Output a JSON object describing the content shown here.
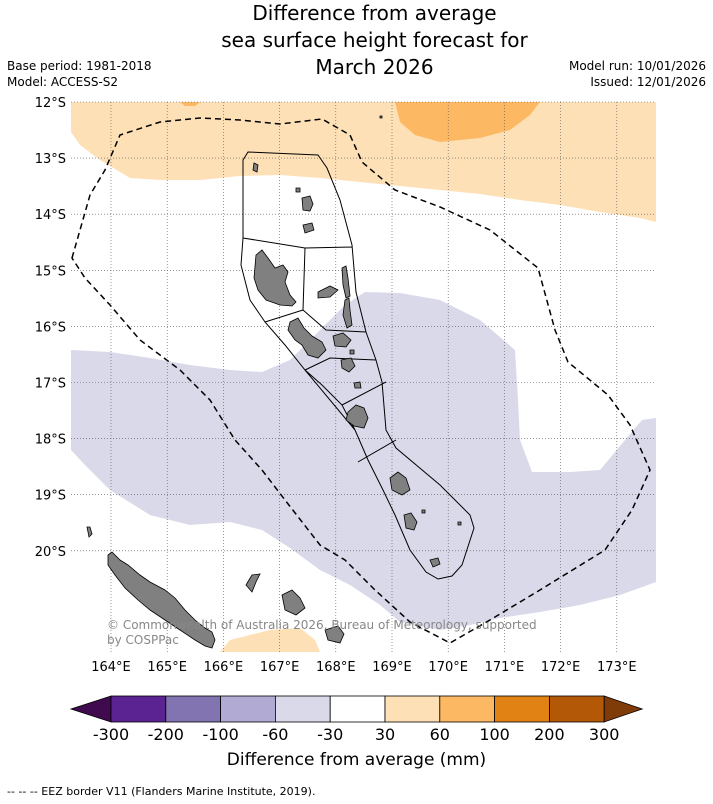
{
  "title": {
    "line1": "Difference from average",
    "line2": "sea surface height forecast for",
    "line3": "March 2026"
  },
  "meta": {
    "base_period": "Base period: 1981-2018",
    "model": "Model: ACCESS-S2",
    "model_run": "Model run: 10/01/2026",
    "issued": "Issued: 12/01/2026"
  },
  "map": {
    "lat_labels": [
      "12°S",
      "13°S",
      "14°S",
      "15°S",
      "16°S",
      "17°S",
      "18°S",
      "19°S",
      "20°S"
    ],
    "lon_labels": [
      "164°E",
      "165°E",
      "166°E",
      "167°E",
      "168°E",
      "169°E",
      "170°E",
      "171°E",
      "172°E",
      "173°E"
    ],
    "copyright_line1": "© Commonwealth of Australia 2026, Bureau of Meteorology, supported",
    "copyright_line2": "by COSPPac"
  },
  "colorbar": {
    "colors": [
      "#3f0a4e",
      "#5b2391",
      "#8274b0",
      "#b1aad2",
      "#d9d9ea",
      "#ffffff",
      "#fee0b6",
      "#fdb863",
      "#e08214",
      "#b35806",
      "#7f3b08"
    ],
    "tick_labels": [
      "-300",
      "-200",
      "-100",
      "-60",
      "-30",
      "30",
      "60",
      "100",
      "200",
      "300"
    ],
    "title": "Difference from average (mm)"
  },
  "footer": {
    "legend": "--  --  -- EEZ border V11 (Flanders Marine Institute, 2019)."
  }
}
